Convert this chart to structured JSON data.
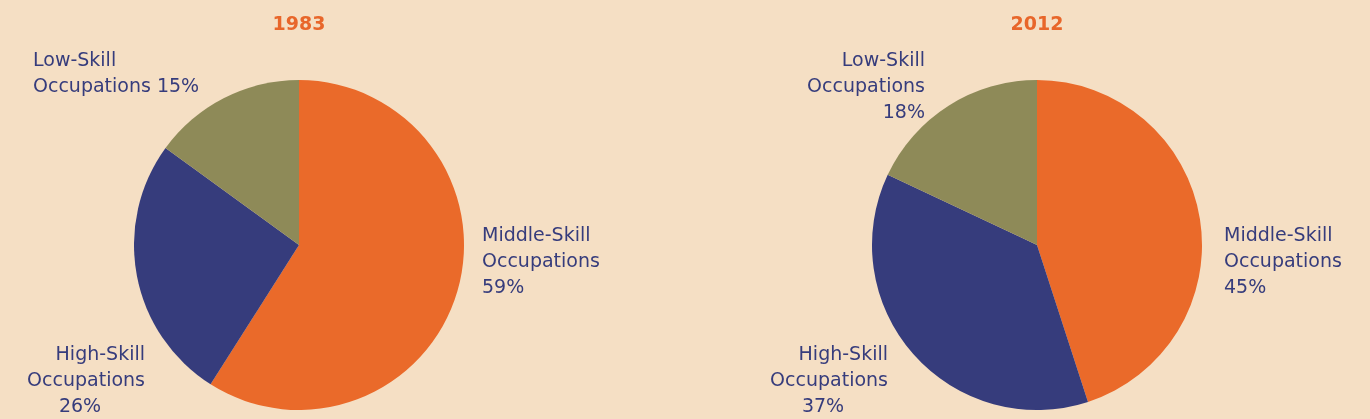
{
  "chart_data": [
    {
      "type": "pie",
      "title": "1983",
      "categories": [
        "Middle-Skill Occupations",
        "High-Skill Occupations",
        "Low-Skill Occupations"
      ],
      "values": [
        59,
        26,
        15
      ],
      "colors": [
        "#ea6a2a",
        "#363c7c",
        "#8e8a58"
      ],
      "value_labels": [
        "59%",
        "26%",
        "15%"
      ]
    },
    {
      "type": "pie",
      "title": "2012",
      "categories": [
        "Middle-Skill Occupations",
        "High-Skill Occupations",
        "Low-Skill Occupations"
      ],
      "values": [
        45,
        37,
        18
      ],
      "colors": [
        "#ea6a2a",
        "#363c7c",
        "#8e8a58"
      ],
      "value_labels": [
        "45%",
        "37%",
        "18%"
      ]
    }
  ]
}
